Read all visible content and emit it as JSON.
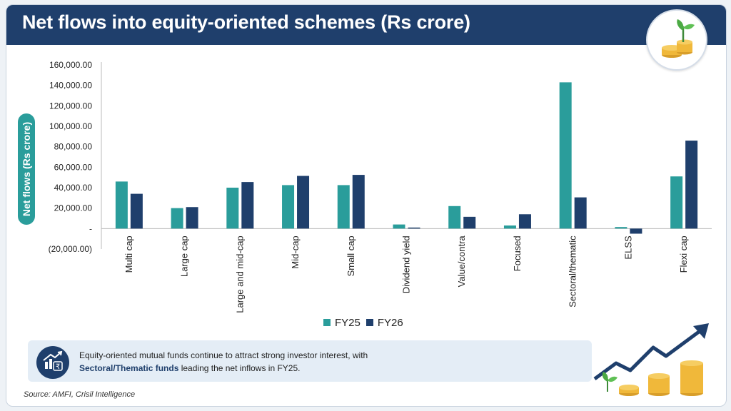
{
  "header": {
    "title": "Net flows into equity-oriented schemes (Rs crore)"
  },
  "colors": {
    "header_bg": "#1f3f6c",
    "fy25": "#2a9d9b",
    "fy26": "#1f3f6c",
    "info_bg": "#e4edf6"
  },
  "icons": {
    "logo": "plant-coins-icon",
    "info": "rupee-growth-chart-icon",
    "decoration": "rising-arrow-coins-icon"
  },
  "chart_data": {
    "type": "bar",
    "ylabel": "Net flows (Rs crore)",
    "ylim": [
      -20000,
      160000
    ],
    "yticks": [
      160000,
      140000,
      120000,
      100000,
      80000,
      60000,
      40000,
      20000,
      0,
      -20000
    ],
    "ytick_labels": [
      "160,000.00",
      "140,000.00",
      "120,000.00",
      "100,000.00",
      "80,000.00",
      "60,000.00",
      "40,000.00",
      "20,000.00",
      "-",
      "(20,000.00)"
    ],
    "categories": [
      "Multi cap",
      "Large cap",
      "Large and mid-cap",
      "Mid-cap",
      "Small cap",
      "Dividend yield",
      "Value/contra",
      "Focused",
      "Sectoral/thematic",
      "ELSS",
      "Flexi cap"
    ],
    "series": [
      {
        "name": "FY25",
        "color": "#2a9d9b",
        "values": [
          46000,
          20000,
          40000,
          42500,
          42500,
          4000,
          22000,
          3000,
          143000,
          1500,
          51000
        ]
      },
      {
        "name": "FY26",
        "color": "#1f3f6c",
        "values": [
          34000,
          21000,
          45500,
          51500,
          52500,
          1000,
          11500,
          14000,
          30500,
          -5000,
          86000
        ]
      }
    ],
    "grid": false,
    "legend": "bottom-center"
  },
  "info": {
    "line1": "Equity-oriented mutual funds continue to attract strong investor interest, with",
    "highlight": "Sectoral/Thematic funds",
    "line2_rest": " leading the net inflows in FY25."
  },
  "source": "Source: AMFI, Crisil Intelligence"
}
